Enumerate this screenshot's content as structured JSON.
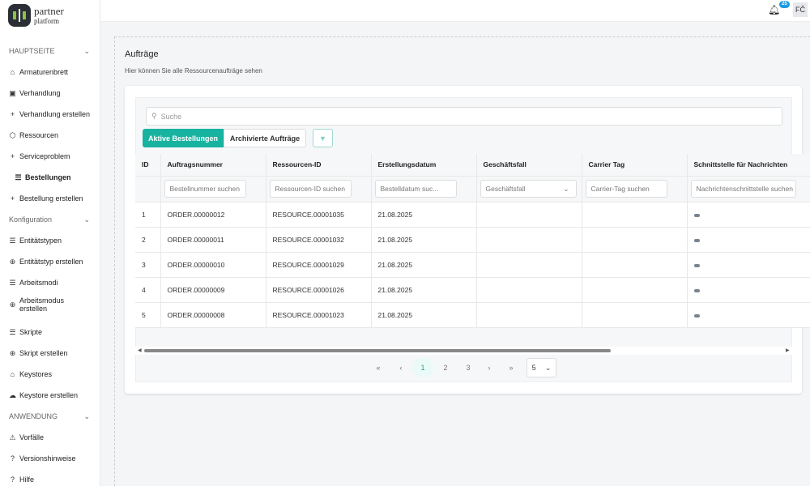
{
  "logo": {
    "line1": "partner",
    "line2": "platform"
  },
  "sidebar": {
    "sections": [
      {
        "label": "HAUPTSEITE",
        "items": [
          {
            "icon": "home-icon",
            "glyph": "⌂",
            "label": "Armaturenbrett"
          },
          {
            "icon": "briefcase-icon",
            "glyph": "▣",
            "label": "Verhandlung"
          },
          {
            "icon": "plus-icon",
            "glyph": "+",
            "label": "Verhandlung erstellen"
          },
          {
            "icon": "box-icon",
            "glyph": "⬡",
            "label": "Ressourcen"
          },
          {
            "icon": "plus-icon",
            "glyph": "+",
            "label": "Serviceproblem"
          },
          {
            "icon": "list-icon",
            "glyph": "☰",
            "label": "Bestellungen",
            "active": true
          },
          {
            "icon": "plus-icon",
            "glyph": "+",
            "label": "Bestellung erstellen"
          }
        ]
      },
      {
        "label": "Konfiguration",
        "items": [
          {
            "icon": "sliders-icon",
            "glyph": "☰",
            "label": "Entitätstypen"
          },
          {
            "icon": "plus-circle-icon",
            "glyph": "⊕",
            "label": "Entitätstyp erstellen"
          },
          {
            "icon": "sliders-icon",
            "glyph": "☰",
            "label": "Arbeitsmodi"
          },
          {
            "icon": "plus-circle-icon",
            "glyph": "⊕",
            "label": "Arbeitsmodus erstellen"
          },
          {
            "icon": "sliders-icon",
            "glyph": "☰",
            "label": "Skripte"
          },
          {
            "icon": "plus-circle-icon",
            "glyph": "⊕",
            "label": "Skript erstellen"
          },
          {
            "icon": "lock-icon",
            "glyph": "⌂",
            "label": "Keystores"
          },
          {
            "icon": "cloud-upload-icon",
            "glyph": "☁",
            "label": "Keystore erstellen"
          }
        ]
      },
      {
        "label": "ANWENDUNG",
        "items": [
          {
            "icon": "warning-icon",
            "glyph": "⚠",
            "label": "Vorfälle"
          },
          {
            "icon": "help-circle-icon",
            "glyph": "?",
            "label": "Versionshinweise"
          },
          {
            "icon": "help-circle-icon",
            "glyph": "?",
            "label": "Hilfe"
          }
        ]
      }
    ]
  },
  "header": {
    "notifications": "25",
    "avatar": "FČ"
  },
  "page": {
    "title": "Aufträge",
    "subtitle": "Hier können Sie alle Ressourcenaufträge sehen"
  },
  "search": {
    "placeholder": "Suche"
  },
  "tabs": {
    "active": "Aktive Bestellungen",
    "archived": "Archivierte Aufträge"
  },
  "accent": "#17b3a0",
  "table": {
    "columns": [
      "ID",
      "Auftragsnummer",
      "Ressourcen-ID",
      "Erstellungsdatum",
      "Geschäftsfall",
      "Carrier Tag",
      "Schnittstelle für Nachrichten"
    ],
    "filters": [
      "",
      "Bestellnummer suchen",
      "Ressourcen-ID suchen",
      "Bestelldatum suc...",
      "Geschäftsfall",
      "Carrier-Tag suchen",
      "Nachrichtenschnittstelle suchen"
    ],
    "rows": [
      [
        "1",
        "ORDER.00000012",
        "RESOURCE.00001035",
        "21.08.2025",
        "",
        ""
      ],
      [
        "2",
        "ORDER.00000011",
        "RESOURCE.00001032",
        "21.08.2025",
        "",
        ""
      ],
      [
        "3",
        "ORDER.00000010",
        "RESOURCE.00001029",
        "21.08.2025",
        "",
        ""
      ],
      [
        "4",
        "ORDER.00000009",
        "RESOURCE.00001026",
        "21.08.2025",
        "",
        ""
      ],
      [
        "5",
        "ORDER.00000008",
        "RESOURCE.00001023",
        "21.08.2025",
        "",
        ""
      ]
    ]
  },
  "pagination": {
    "first": "«",
    "prev": "‹",
    "pages": [
      "1",
      "2",
      "3"
    ],
    "current": "1",
    "next": "›",
    "last": "»",
    "page_size": "5"
  }
}
